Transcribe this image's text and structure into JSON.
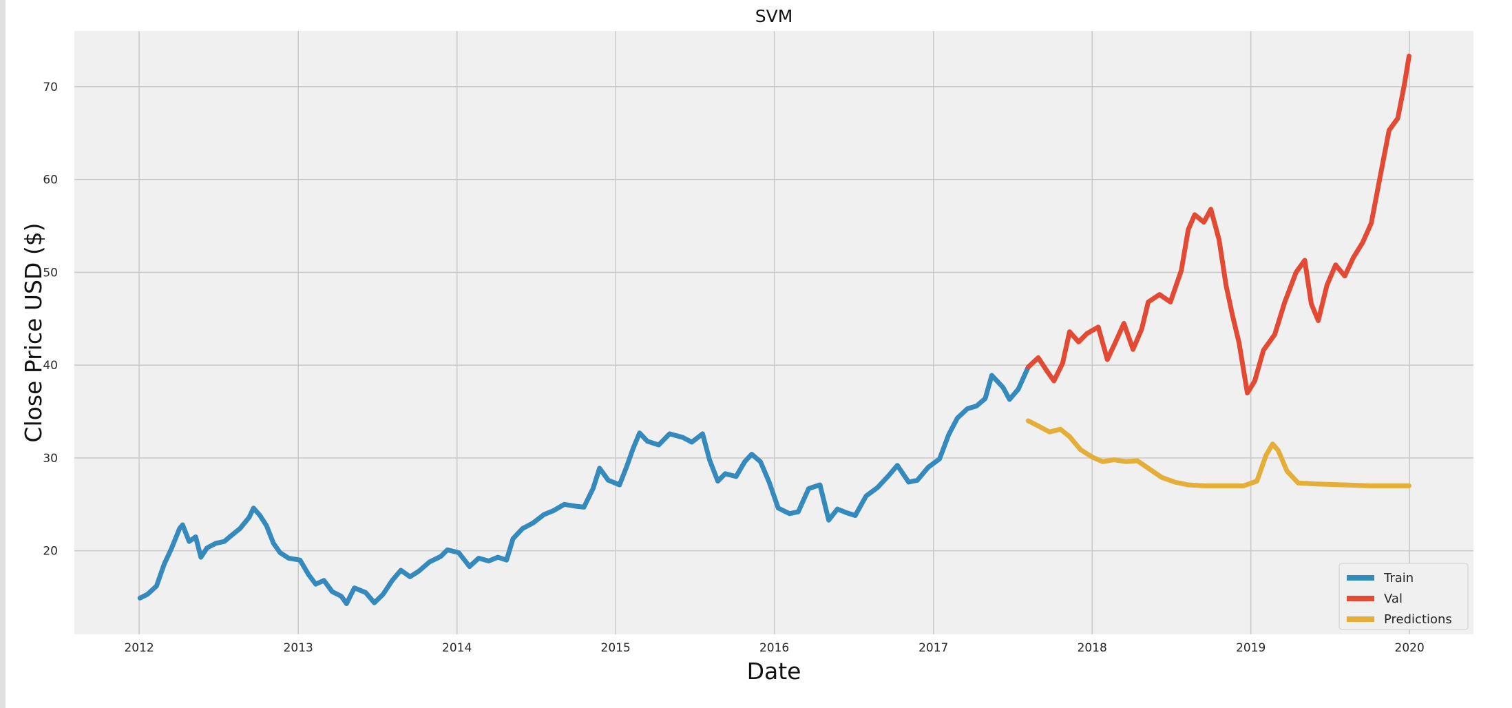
{
  "chart_data": {
    "type": "line",
    "title": "SVM",
    "xlabel": "Date",
    "ylabel": "Close Price USD ($)",
    "x_ticks": [
      "2012",
      "2013",
      "2014",
      "2015",
      "2016",
      "2017",
      "2018",
      "2019",
      "2020"
    ],
    "y_ticks": [
      20,
      30,
      40,
      50,
      60,
      70
    ],
    "xlim": [
      "2011-08-05",
      "2020-05-27"
    ],
    "ylim": [
      11.0,
      76.0
    ],
    "grid": true,
    "legend_position": "lower right",
    "series": [
      {
        "name": "Train",
        "color": "#348ABD",
        "points": [
          [
            "2012-01-03",
            14.9
          ],
          [
            "2012-01-20",
            15.3
          ],
          [
            "2012-02-10",
            16.2
          ],
          [
            "2012-02-28",
            18.6
          ],
          [
            "2012-03-15",
            20.2
          ],
          [
            "2012-04-03",
            22.4
          ],
          [
            "2012-04-10",
            22.8
          ],
          [
            "2012-04-25",
            21.0
          ],
          [
            "2012-05-10",
            21.5
          ],
          [
            "2012-05-22",
            19.3
          ],
          [
            "2012-06-05",
            20.3
          ],
          [
            "2012-06-25",
            20.8
          ],
          [
            "2012-07-15",
            21.0
          ],
          [
            "2012-07-30",
            21.6
          ],
          [
            "2012-08-20",
            22.4
          ],
          [
            "2012-09-10",
            23.6
          ],
          [
            "2012-09-20",
            24.6
          ],
          [
            "2012-10-05",
            23.8
          ],
          [
            "2012-10-20",
            22.7
          ],
          [
            "2012-11-05",
            20.8
          ],
          [
            "2012-11-20",
            19.8
          ],
          [
            "2012-12-10",
            19.2
          ],
          [
            "2013-01-05",
            19.0
          ],
          [
            "2013-01-25",
            17.4
          ],
          [
            "2013-02-10",
            16.4
          ],
          [
            "2013-03-01",
            16.8
          ],
          [
            "2013-03-20",
            15.6
          ],
          [
            "2013-04-10",
            15.1
          ],
          [
            "2013-04-22",
            14.3
          ],
          [
            "2013-05-10",
            16.0
          ],
          [
            "2013-06-05",
            15.5
          ],
          [
            "2013-06-25",
            14.4
          ],
          [
            "2013-07-15",
            15.3
          ],
          [
            "2013-08-05",
            16.8
          ],
          [
            "2013-08-25",
            17.9
          ],
          [
            "2013-09-15",
            17.2
          ],
          [
            "2013-10-05",
            17.8
          ],
          [
            "2013-10-30",
            18.8
          ],
          [
            "2013-11-25",
            19.4
          ],
          [
            "2013-12-10",
            20.1
          ],
          [
            "2014-01-05",
            19.8
          ],
          [
            "2014-01-30",
            18.3
          ],
          [
            "2014-02-20",
            19.2
          ],
          [
            "2014-03-15",
            18.9
          ],
          [
            "2014-04-05",
            19.3
          ],
          [
            "2014-04-25",
            19.0
          ],
          [
            "2014-05-10",
            21.3
          ],
          [
            "2014-06-01",
            22.4
          ],
          [
            "2014-06-25",
            23.0
          ],
          [
            "2014-07-20",
            23.9
          ],
          [
            "2014-08-10",
            24.3
          ],
          [
            "2014-09-05",
            25.0
          ],
          [
            "2014-10-01",
            24.8
          ],
          [
            "2014-10-20",
            24.7
          ],
          [
            "2014-11-10",
            26.7
          ],
          [
            "2014-11-25",
            28.9
          ],
          [
            "2014-12-15",
            27.6
          ],
          [
            "2015-01-10",
            27.1
          ],
          [
            "2015-01-25",
            28.9
          ],
          [
            "2015-02-10",
            31.0
          ],
          [
            "2015-02-25",
            32.7
          ],
          [
            "2015-03-15",
            31.8
          ],
          [
            "2015-04-10",
            31.4
          ],
          [
            "2015-05-05",
            32.6
          ],
          [
            "2015-06-05",
            32.2
          ],
          [
            "2015-06-25",
            31.7
          ],
          [
            "2015-07-20",
            32.6
          ],
          [
            "2015-08-05",
            29.8
          ],
          [
            "2015-08-24",
            27.5
          ],
          [
            "2015-09-10",
            28.3
          ],
          [
            "2015-10-05",
            28.0
          ],
          [
            "2015-10-25",
            29.6
          ],
          [
            "2015-11-10",
            30.4
          ],
          [
            "2015-11-30",
            29.6
          ],
          [
            "2015-12-20",
            27.4
          ],
          [
            "2016-01-10",
            24.6
          ],
          [
            "2016-02-05",
            24.0
          ],
          [
            "2016-02-25",
            24.2
          ],
          [
            "2016-03-20",
            26.7
          ],
          [
            "2016-04-15",
            27.1
          ],
          [
            "2016-05-05",
            23.3
          ],
          [
            "2016-05-25",
            24.5
          ],
          [
            "2016-06-15",
            24.1
          ],
          [
            "2016-07-05",
            23.8
          ],
          [
            "2016-07-30",
            25.9
          ],
          [
            "2016-08-25",
            26.8
          ],
          [
            "2016-09-20",
            28.1
          ],
          [
            "2016-10-10",
            29.2
          ],
          [
            "2016-11-05",
            27.4
          ],
          [
            "2016-11-25",
            27.6
          ],
          [
            "2016-12-20",
            29.0
          ],
          [
            "2017-01-15",
            29.9
          ],
          [
            "2017-02-05",
            32.5
          ],
          [
            "2017-02-25",
            34.3
          ],
          [
            "2017-03-20",
            35.3
          ],
          [
            "2017-04-10",
            35.6
          ],
          [
            "2017-04-30",
            36.4
          ],
          [
            "2017-05-15",
            38.9
          ],
          [
            "2017-06-10",
            37.6
          ],
          [
            "2017-06-25",
            36.3
          ],
          [
            "2017-07-15",
            37.4
          ],
          [
            "2017-08-07",
            39.8
          ]
        ]
      },
      {
        "name": "Val",
        "color": "#E24A33",
        "points": [
          [
            "2017-08-07",
            39.8
          ],
          [
            "2017-08-30",
            40.8
          ],
          [
            "2017-09-20",
            39.3
          ],
          [
            "2017-10-05",
            38.3
          ],
          [
            "2017-10-25",
            40.2
          ],
          [
            "2017-11-10",
            43.6
          ],
          [
            "2017-12-01",
            42.5
          ],
          [
            "2017-12-20",
            43.4
          ],
          [
            "2018-01-15",
            44.1
          ],
          [
            "2018-02-05",
            40.6
          ],
          [
            "2018-02-25",
            42.6
          ],
          [
            "2018-03-15",
            44.5
          ],
          [
            "2018-04-05",
            41.7
          ],
          [
            "2018-04-25",
            43.9
          ],
          [
            "2018-05-10",
            46.8
          ],
          [
            "2018-06-05",
            47.6
          ],
          [
            "2018-06-30",
            46.8
          ],
          [
            "2018-07-25",
            50.2
          ],
          [
            "2018-08-10",
            54.6
          ],
          [
            "2018-08-25",
            56.2
          ],
          [
            "2018-09-15",
            55.4
          ],
          [
            "2018-10-01",
            56.8
          ],
          [
            "2018-10-20",
            53.5
          ],
          [
            "2018-11-05",
            48.6
          ],
          [
            "2018-11-20",
            45.3
          ],
          [
            "2018-12-05",
            42.4
          ],
          [
            "2018-12-24",
            37.0
          ],
          [
            "2019-01-10",
            38.3
          ],
          [
            "2019-01-30",
            41.6
          ],
          [
            "2019-02-25",
            43.3
          ],
          [
            "2019-03-20",
            46.8
          ],
          [
            "2019-04-15",
            50.0
          ],
          [
            "2019-05-05",
            51.3
          ],
          [
            "2019-05-20",
            46.6
          ],
          [
            "2019-06-05",
            44.8
          ],
          [
            "2019-06-25",
            48.6
          ],
          [
            "2019-07-15",
            50.8
          ],
          [
            "2019-08-05",
            49.6
          ],
          [
            "2019-08-25",
            51.6
          ],
          [
            "2019-09-15",
            53.2
          ],
          [
            "2019-10-05",
            55.3
          ],
          [
            "2019-10-25",
            60.2
          ],
          [
            "2019-11-15",
            65.3
          ],
          [
            "2019-12-05",
            66.6
          ],
          [
            "2019-12-20",
            70.2
          ],
          [
            "2019-12-31",
            73.3
          ]
        ]
      },
      {
        "name": "Predictions",
        "color": "#E5AE38",
        "points": [
          [
            "2017-08-07",
            34.0
          ],
          [
            "2017-09-01",
            33.4
          ],
          [
            "2017-09-25",
            32.8
          ],
          [
            "2017-10-20",
            33.1
          ],
          [
            "2017-11-10",
            32.3
          ],
          [
            "2017-12-05",
            30.9
          ],
          [
            "2018-01-01",
            30.1
          ],
          [
            "2018-01-25",
            29.6
          ],
          [
            "2018-02-20",
            29.8
          ],
          [
            "2018-03-20",
            29.6
          ],
          [
            "2018-04-15",
            29.7
          ],
          [
            "2018-05-10",
            28.9
          ],
          [
            "2018-06-10",
            27.9
          ],
          [
            "2018-07-10",
            27.4
          ],
          [
            "2018-08-10",
            27.1
          ],
          [
            "2018-09-15",
            27.0
          ],
          [
            "2018-11-01",
            27.0
          ],
          [
            "2018-12-15",
            27.0
          ],
          [
            "2019-01-15",
            27.5
          ],
          [
            "2019-02-05",
            30.3
          ],
          [
            "2019-02-20",
            31.5
          ],
          [
            "2019-03-05",
            30.8
          ],
          [
            "2019-03-25",
            28.6
          ],
          [
            "2019-04-20",
            27.3
          ],
          [
            "2019-06-01",
            27.2
          ],
          [
            "2019-08-01",
            27.1
          ],
          [
            "2019-10-01",
            27.0
          ],
          [
            "2019-12-31",
            27.0
          ]
        ]
      }
    ]
  }
}
